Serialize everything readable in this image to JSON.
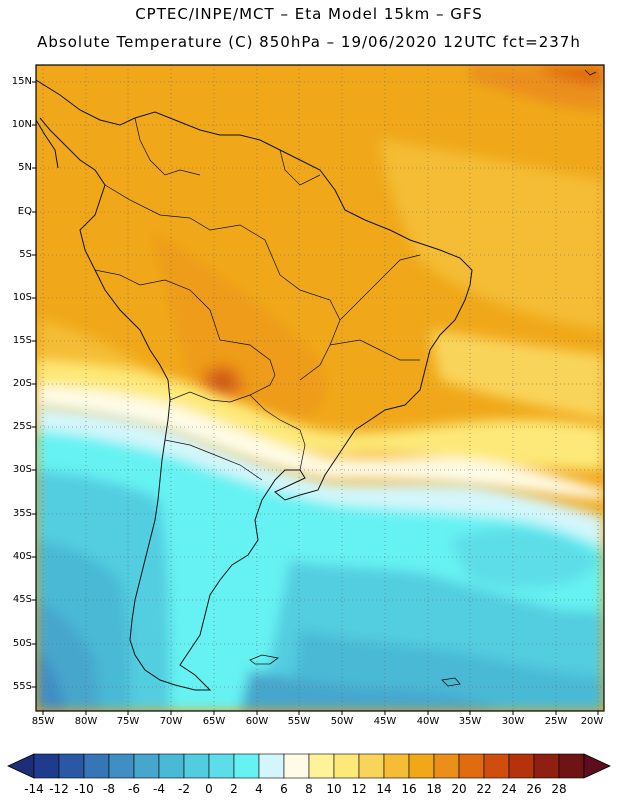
{
  "header": {
    "line1": "CPTEC/INPE/MCT –   Eta Model 15km – GFS",
    "line2": "Absolute Temperature (C) 850hPa – 19/06/2020 12UTC fct=237h"
  },
  "map": {
    "region": "South America",
    "lat_labels": [
      "15N",
      "10N",
      "5N",
      "EQ",
      "5S",
      "10S",
      "15S",
      "20S",
      "25S",
      "30S",
      "35S",
      "40S",
      "45S",
      "50S",
      "55S"
    ],
    "lon_labels": [
      "85W",
      "80W",
      "75W",
      "70W",
      "65W",
      "60W",
      "55W",
      "50W",
      "45W",
      "40W",
      "35W",
      "30W",
      "25W",
      "20W"
    ]
  },
  "colorbar": {
    "labels": [
      "-14",
      "-12",
      "-10",
      "-8",
      "-6",
      "-4",
      "-2",
      "0",
      "2",
      "4",
      "6",
      "8",
      "10",
      "12",
      "14",
      "16",
      "18",
      "20",
      "22",
      "24",
      "26",
      "28"
    ],
    "colors": [
      "#1f3c8c",
      "#2a58a4",
      "#3676b6",
      "#3f8ec4",
      "#46a6cc",
      "#4ab9d6",
      "#52cde0",
      "#5ddde8",
      "#66f2f2",
      "#d4f6fb",
      "#fffbe6",
      "#fff39a",
      "#fde979",
      "#f9d45a",
      "#f4bd35",
      "#f0a81a",
      "#eb8f1b",
      "#e06b10",
      "#cf4e0e",
      "#b5330c",
      "#8f1f10",
      "#6f1414"
    ],
    "under_color": "#1c2e78",
    "over_color": "#5c0d20"
  }
}
